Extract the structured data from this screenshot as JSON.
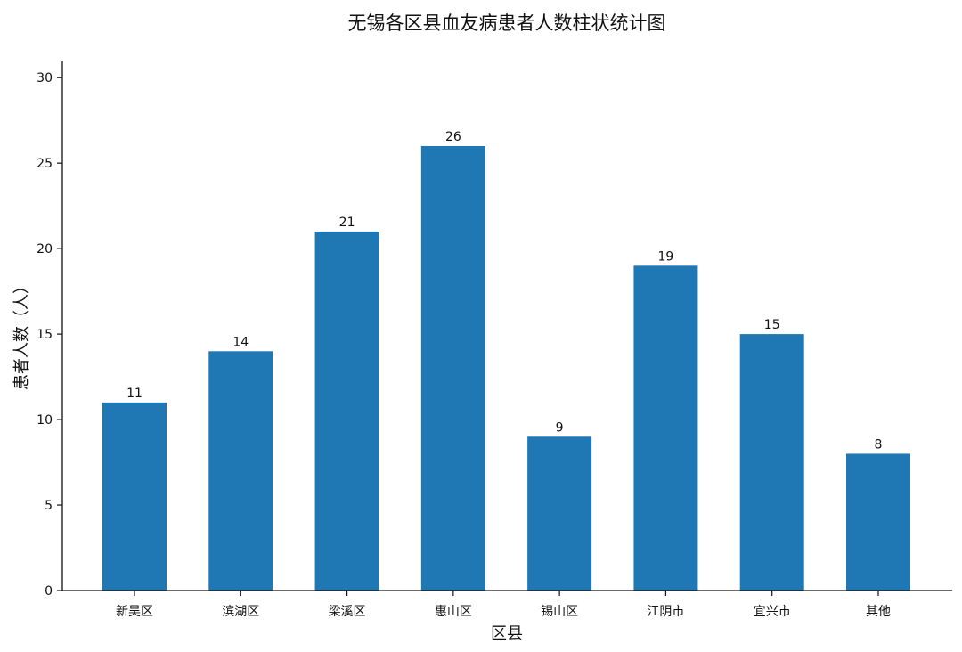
{
  "chart_data": {
    "type": "bar",
    "title": "无锡各区县血友病患者人数柱状统计图",
    "xlabel": "区县",
    "ylabel": "患者人数（人）",
    "categories": [
      "新吴区",
      "滨湖区",
      "梁溪区",
      "惠山区",
      "锡山区",
      "江阴市",
      "宜兴市",
      "其他"
    ],
    "values": [
      11,
      14,
      21,
      26,
      9,
      19,
      15,
      8
    ],
    "ylim": [
      0,
      31
    ],
    "yticks": [
      0,
      5,
      10,
      15,
      20,
      25,
      30
    ],
    "bar_color": "#1f77b4",
    "grid": false,
    "legend": "none",
    "show_data_labels": true
  }
}
